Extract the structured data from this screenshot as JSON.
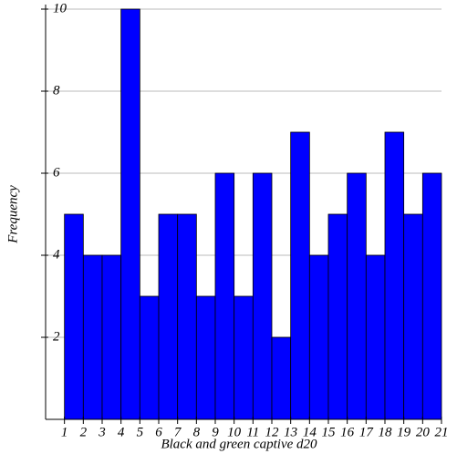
{
  "chart_data": {
    "type": "histogram",
    "x_label": "Black and green captive d20",
    "y_label": "Frequency",
    "bins": [
      1,
      2,
      3,
      4,
      5,
      6,
      7,
      8,
      9,
      10,
      11,
      12,
      13,
      14,
      15,
      16,
      17,
      18,
      19,
      20,
      21
    ],
    "values": [
      5,
      4,
      4,
      10,
      3,
      5,
      5,
      3,
      6,
      3,
      6,
      2,
      7,
      4,
      5,
      6,
      4,
      7,
      5,
      6
    ],
    "color": "#0000ff",
    "xlim": [
      0,
      21
    ],
    "xticks": [
      1,
      2,
      3,
      4,
      5,
      6,
      7,
      8,
      9,
      10,
      11,
      12,
      13,
      14,
      15,
      16,
      17,
      18,
      19,
      20,
      21
    ],
    "ylim": [
      0,
      10
    ],
    "yticks": [
      2,
      4,
      6,
      8,
      10
    ],
    "grid": true
  }
}
